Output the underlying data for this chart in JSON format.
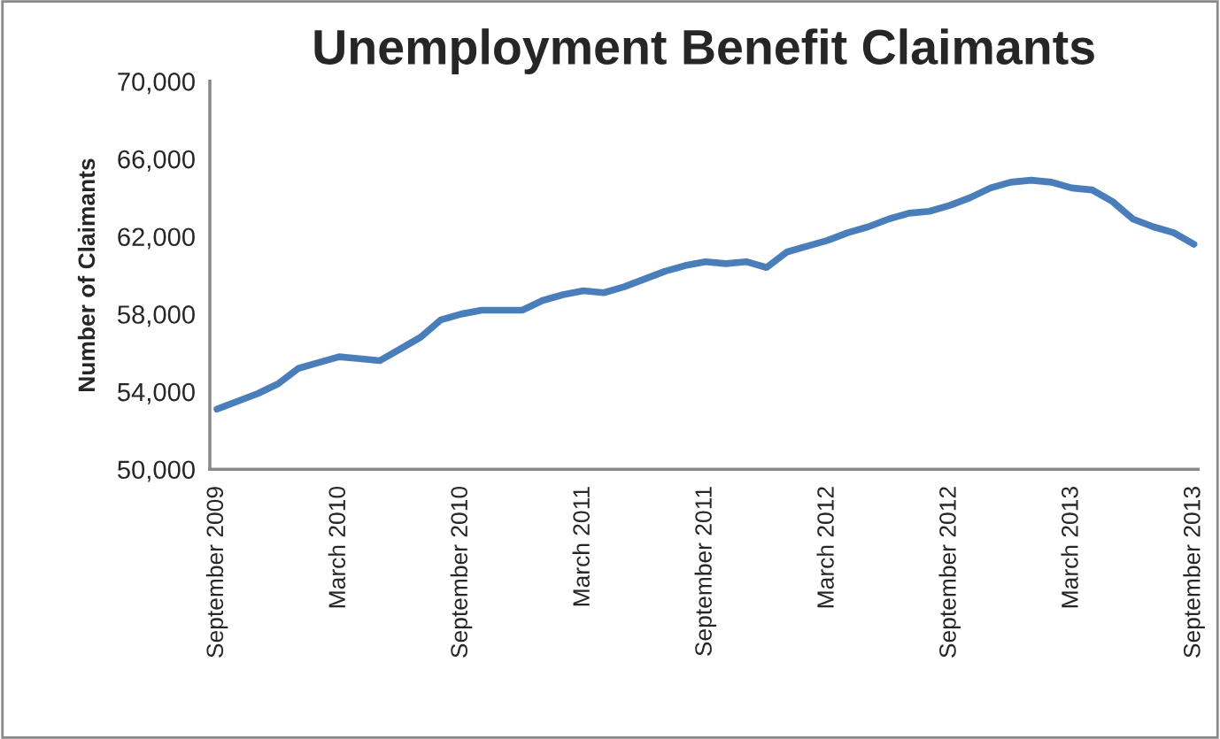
{
  "chart_data": {
    "type": "line",
    "title": "Unemployment Benefit Claimants",
    "ylabel": "Number of Claimants",
    "categories": [
      "September 2009",
      null,
      null,
      null,
      null,
      null,
      "March 2010",
      null,
      null,
      null,
      null,
      null,
      "September 2010",
      null,
      null,
      null,
      null,
      null,
      "March 2011",
      null,
      null,
      null,
      null,
      null,
      "September 2011",
      null,
      null,
      null,
      null,
      null,
      "March 2012",
      null,
      null,
      null,
      null,
      null,
      "September 2012",
      null,
      null,
      null,
      null,
      null,
      "March 2013",
      null,
      null,
      null,
      null,
      null,
      "September 2013"
    ],
    "series": [
      {
        "color": "#4a7ebb",
        "values": [
          53100,
          53500,
          53900,
          54400,
          55200,
          55500,
          55800,
          55700,
          55600,
          56200,
          56800,
          57700,
          58000,
          58200,
          58200,
          58200,
          58700,
          59000,
          59200,
          59100,
          59400,
          59800,
          60200,
          60500,
          60700,
          60600,
          60700,
          60400,
          61200,
          61500,
          61800,
          62200,
          62500,
          62900,
          63200,
          63300,
          63600,
          64000,
          64500,
          64800,
          64900,
          64800,
          64500,
          64400,
          63800,
          62900,
          62500,
          62200,
          61600
        ]
      }
    ],
    "ylim": [
      50000,
      70000
    ],
    "yticks": [
      {
        "value": 50000,
        "label": "50,000"
      },
      {
        "value": 54000,
        "label": "54,000"
      },
      {
        "value": 58000,
        "label": "58,000"
      },
      {
        "value": 62000,
        "label": "62,000"
      },
      {
        "value": 66000,
        "label": "66,000"
      },
      {
        "value": 70000,
        "label": "70,000"
      }
    ],
    "grid": false,
    "marker": "none",
    "line_style": "solid"
  }
}
